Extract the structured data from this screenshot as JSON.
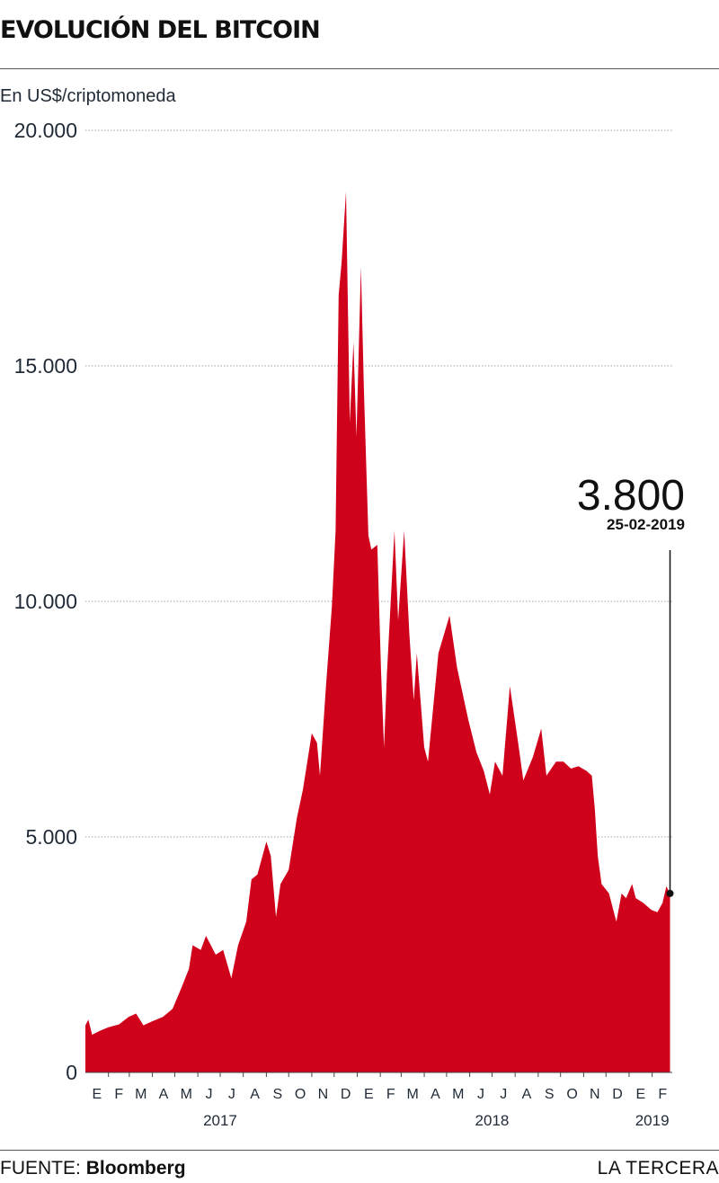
{
  "header": {
    "title": "EVOLUCIÓN DEL BITCOIN",
    "unit_label": "En US$/criptomoneda"
  },
  "footer": {
    "source_prefix": "FUENTE:",
    "source_name": "Bloomberg",
    "brand": "LA TERCERA"
  },
  "colors": {
    "area_fill": "#d0021b",
    "text": "#1f2a36",
    "grid": "#9aa3ab"
  },
  "chart_data": {
    "type": "area",
    "title": "EVOLUCIÓN DEL BITCOIN",
    "ylabel": "En US$/criptomoneda",
    "ylim": [
      0,
      20000
    ],
    "yticks": [
      0,
      5000,
      10000,
      15000,
      20000
    ],
    "ytick_labels": [
      "0",
      "5.000",
      "10.000",
      "15.000",
      "20.000"
    ],
    "grid": true,
    "xlim": [
      "2017-01-01",
      "2019-02-28"
    ],
    "month_labels": [
      "E",
      "F",
      "M",
      "A",
      "M",
      "J",
      "J",
      "A",
      "S",
      "O",
      "N",
      "D",
      "E",
      "F",
      "M",
      "A",
      "M",
      "J",
      "J",
      "A",
      "S",
      "O",
      "N",
      "D",
      "E",
      "F"
    ],
    "year_labels": [
      {
        "label": "2017",
        "position": "2017-07-01"
      },
      {
        "label": "2018",
        "position": "2018-07-01"
      },
      {
        "label": "2019",
        "position": "2019-02-01"
      }
    ],
    "series": [
      {
        "values": [
          [
            "2017-01-01",
            1000
          ],
          [
            "2017-01-05",
            1120
          ],
          [
            "2017-01-10",
            800
          ],
          [
            "2017-01-20",
            880
          ],
          [
            "2017-02-01",
            960
          ],
          [
            "2017-02-15",
            1020
          ],
          [
            "2017-02-28",
            1180
          ],
          [
            "2017-03-10",
            1250
          ],
          [
            "2017-03-20",
            1000
          ],
          [
            "2017-03-31",
            1080
          ],
          [
            "2017-04-15",
            1180
          ],
          [
            "2017-04-28",
            1350
          ],
          [
            "2017-05-10",
            1800
          ],
          [
            "2017-05-20",
            2200
          ],
          [
            "2017-05-25",
            2700
          ],
          [
            "2017-06-05",
            2600
          ],
          [
            "2017-06-12",
            2900
          ],
          [
            "2017-06-25",
            2500
          ],
          [
            "2017-07-05",
            2600
          ],
          [
            "2017-07-16",
            2000
          ],
          [
            "2017-07-25",
            2700
          ],
          [
            "2017-08-05",
            3200
          ],
          [
            "2017-08-12",
            4100
          ],
          [
            "2017-08-20",
            4200
          ],
          [
            "2017-09-01",
            4900
          ],
          [
            "2017-09-07",
            4600
          ],
          [
            "2017-09-14",
            3300
          ],
          [
            "2017-09-20",
            4000
          ],
          [
            "2017-10-01",
            4300
          ],
          [
            "2017-10-12",
            5400
          ],
          [
            "2017-10-20",
            6000
          ],
          [
            "2017-11-01",
            7200
          ],
          [
            "2017-11-08",
            7000
          ],
          [
            "2017-11-12",
            6300
          ],
          [
            "2017-11-20",
            8200
          ],
          [
            "2017-11-28",
            9900
          ],
          [
            "2017-12-03",
            11500
          ],
          [
            "2017-12-07",
            16500
          ],
          [
            "2017-12-11",
            17200
          ],
          [
            "2017-12-17",
            18700
          ],
          [
            "2017-12-22",
            13800
          ],
          [
            "2017-12-27",
            15500
          ],
          [
            "2017-12-31",
            13500
          ],
          [
            "2018-01-06",
            17100
          ],
          [
            "2018-01-10",
            14500
          ],
          [
            "2018-01-16",
            11400
          ],
          [
            "2018-01-20",
            11100
          ],
          [
            "2018-01-28",
            11200
          ],
          [
            "2018-02-02",
            8500
          ],
          [
            "2018-02-06",
            6900
          ],
          [
            "2018-02-10",
            8500
          ],
          [
            "2018-02-20",
            11500
          ],
          [
            "2018-02-25",
            9600
          ],
          [
            "2018-03-05",
            11500
          ],
          [
            "2018-03-12",
            9300
          ],
          [
            "2018-03-18",
            7900
          ],
          [
            "2018-03-22",
            8900
          ],
          [
            "2018-04-01",
            6900
          ],
          [
            "2018-04-06",
            6600
          ],
          [
            "2018-04-20",
            8900
          ],
          [
            "2018-05-05",
            9700
          ],
          [
            "2018-05-15",
            8600
          ],
          [
            "2018-05-30",
            7500
          ],
          [
            "2018-06-10",
            6800
          ],
          [
            "2018-06-20",
            6400
          ],
          [
            "2018-06-28",
            5900
          ],
          [
            "2018-07-05",
            6600
          ],
          [
            "2018-07-15",
            6300
          ],
          [
            "2018-07-25",
            8200
          ],
          [
            "2018-08-05",
            7000
          ],
          [
            "2018-08-12",
            6200
          ],
          [
            "2018-08-25",
            6700
          ],
          [
            "2018-09-05",
            7300
          ],
          [
            "2018-09-12",
            6300
          ],
          [
            "2018-09-25",
            6600
          ],
          [
            "2018-10-05",
            6600
          ],
          [
            "2018-10-15",
            6450
          ],
          [
            "2018-10-25",
            6500
          ],
          [
            "2018-11-05",
            6400
          ],
          [
            "2018-11-12",
            6300
          ],
          [
            "2018-11-16",
            5600
          ],
          [
            "2018-11-20",
            4600
          ],
          [
            "2018-11-25",
            4000
          ],
          [
            "2018-12-05",
            3800
          ],
          [
            "2018-12-10",
            3500
          ],
          [
            "2018-12-15",
            3200
          ],
          [
            "2018-12-22",
            3800
          ],
          [
            "2018-12-28",
            3700
          ],
          [
            "2019-01-05",
            4000
          ],
          [
            "2019-01-10",
            3700
          ],
          [
            "2019-01-20",
            3600
          ],
          [
            "2019-01-31",
            3450
          ],
          [
            "2019-02-08",
            3400
          ],
          [
            "2019-02-15",
            3600
          ],
          [
            "2019-02-20",
            3950
          ],
          [
            "2019-02-25",
            3800
          ]
        ]
      }
    ],
    "annotation": {
      "value_label": "3.800",
      "date_label": "25-02-2019",
      "x": "2019-02-25",
      "y": 3800
    }
  }
}
